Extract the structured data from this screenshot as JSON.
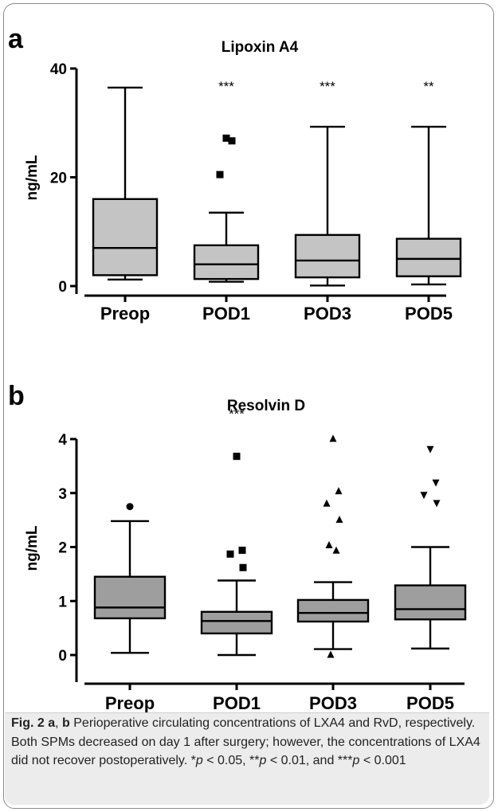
{
  "chart_data": [
    {
      "type": "box",
      "panel_label": "a",
      "title": "Lipoxin A4",
      "ylabel": "ng/mL",
      "ylim": [
        0,
        40
      ],
      "yticks": [
        0,
        20,
        40
      ],
      "categories": [
        "Preop",
        "POD1",
        "POD3",
        "POD5"
      ],
      "colors": {
        "box_fill": "#c4c4c4",
        "stroke": "#000000"
      },
      "boxes": [
        {
          "category": "Preop",
          "min": 1.2,
          "q1": 2.0,
          "median": 7.0,
          "q3": 16.0,
          "max": 36.5,
          "outliers": [],
          "marker": "square",
          "sig": ""
        },
        {
          "category": "POD1",
          "min": 0.8,
          "q1": 1.3,
          "median": 4.0,
          "q3": 7.5,
          "max": 13.5,
          "outliers": [
            27.2,
            26.7,
            20.5
          ],
          "marker": "square",
          "sig": "***"
        },
        {
          "category": "POD3",
          "min": 0.1,
          "q1": 1.6,
          "median": 4.7,
          "q3": 9.4,
          "max": 29.3,
          "outliers": [],
          "marker": "square",
          "sig": "***"
        },
        {
          "category": "POD5",
          "min": 0.3,
          "q1": 1.8,
          "median": 5.0,
          "q3": 8.7,
          "max": 29.3,
          "outliers": [],
          "marker": "square",
          "sig": "**"
        }
      ]
    },
    {
      "type": "box",
      "panel_label": "b",
      "title": "Resolvin D",
      "ylabel": "ng/mL",
      "ylim": [
        0,
        4
      ],
      "yticks": [
        0,
        1,
        2,
        3,
        4
      ],
      "categories": [
        "Preop",
        "POD1",
        "POD3",
        "POD5"
      ],
      "colors": {
        "box_fill": "#9e9e9e",
        "stroke": "#000000"
      },
      "boxes": [
        {
          "category": "Preop",
          "min": 0.04,
          "q1": 0.68,
          "median": 0.88,
          "q3": 1.45,
          "max": 2.48,
          "outliers": [
            2.75
          ],
          "marker": "circle",
          "sig": ""
        },
        {
          "category": "POD1",
          "min": 0.0,
          "q1": 0.4,
          "median": 0.63,
          "q3": 0.8,
          "max": 1.38,
          "outliers": [
            3.68,
            1.94,
            1.87,
            1.62
          ],
          "marker": "square",
          "sig": "***"
        },
        {
          "category": "POD3",
          "min": 0.11,
          "q1": 0.62,
          "median": 0.78,
          "q3": 1.02,
          "max": 1.35,
          "outliers": [
            4.0,
            3.03,
            2.8,
            2.5,
            2.03,
            1.93,
            0.0
          ],
          "marker": "triangle-up",
          "sig": ""
        },
        {
          "category": "POD5",
          "min": 0.12,
          "q1": 0.66,
          "median": 0.85,
          "q3": 1.29,
          "max": 2.0,
          "outliers": [
            3.82,
            3.2,
            2.97,
            2.82
          ],
          "marker": "triangle-down",
          "sig": ""
        }
      ]
    }
  ],
  "caption": {
    "fig_label": "Fig. 2",
    "panel_a": "a",
    "separator": ", ",
    "panel_b": "b",
    "text": " Perioperative circulating concentrations of LXA4 and RvD, respectively. Both SPMs decreased on day 1 after surgery; however, the concentrations of LXA4 did not recover postoperatively. ",
    "p_levels": [
      {
        "stars": "*",
        "p": "p",
        "rel": " < 0.05, "
      },
      {
        "stars": "**",
        "p": "p",
        "rel": " < 0.01, and "
      },
      {
        "stars": "***",
        "p": "p",
        "rel": " < 0.001"
      }
    ]
  }
}
